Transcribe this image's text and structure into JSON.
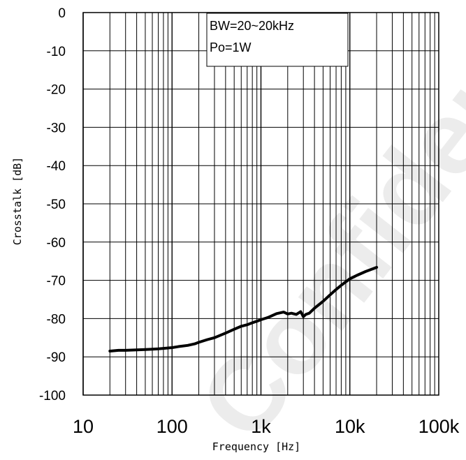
{
  "chart_data": {
    "type": "line",
    "xlabel": "Frequency [Hz]",
    "ylabel": "Crosstalk [dB]",
    "xscale": "log",
    "xlim": [
      10,
      100000
    ],
    "ylim": [
      -100,
      0
    ],
    "xticks": [
      {
        "value": 10,
        "label": "10"
      },
      {
        "value": 100,
        "label": "100"
      },
      {
        "value": 1000,
        "label": "1k"
      },
      {
        "value": 10000,
        "label": "10k"
      },
      {
        "value": 100000,
        "label": "100k"
      }
    ],
    "yticks": [
      {
        "value": 0,
        "label": "0"
      },
      {
        "value": -10,
        "label": "-10"
      },
      {
        "value": -20,
        "label": "-20"
      },
      {
        "value": -30,
        "label": "-30"
      },
      {
        "value": -40,
        "label": "-40"
      },
      {
        "value": -50,
        "label": "-50"
      },
      {
        "value": -60,
        "label": "-60"
      },
      {
        "value": -70,
        "label": "-70"
      },
      {
        "value": -80,
        "label": "-80"
      },
      {
        "value": -90,
        "label": "-90"
      },
      {
        "value": -100,
        "label": "-100"
      }
    ],
    "grid": true,
    "annotations": [
      "BW=20~20kHz",
      "Po=1W"
    ],
    "series": [
      {
        "color": "#000000",
        "x": [
          20,
          25,
          30,
          40,
          50,
          60,
          70,
          80,
          100,
          120,
          150,
          180,
          200,
          250,
          300,
          400,
          500,
          600,
          700,
          800,
          900,
          1000,
          1200,
          1500,
          1800,
          2000,
          2200,
          2500,
          2800,
          3000,
          3200,
          3500,
          4000,
          5000,
          6000,
          7000,
          8000,
          10000,
          12000,
          15000,
          18000,
          20000
        ],
        "y": [
          -88.5,
          -88.3,
          -88.3,
          -88.2,
          -88.1,
          -88.0,
          -87.9,
          -87.8,
          -87.6,
          -87.3,
          -87.0,
          -86.6,
          -86.2,
          -85.5,
          -85.0,
          -83.8,
          -82.8,
          -82.0,
          -81.6,
          -81.1,
          -80.7,
          -80.3,
          -79.7,
          -78.7,
          -78.3,
          -78.8,
          -78.6,
          -78.9,
          -78.2,
          -79.5,
          -78.9,
          -78.6,
          -77.3,
          -75.5,
          -73.8,
          -72.4,
          -71.3,
          -69.6,
          -68.7,
          -67.7,
          -67.0,
          -66.6
        ]
      }
    ]
  },
  "watermark": {
    "text": "Confidential",
    "color": "#000000"
  }
}
